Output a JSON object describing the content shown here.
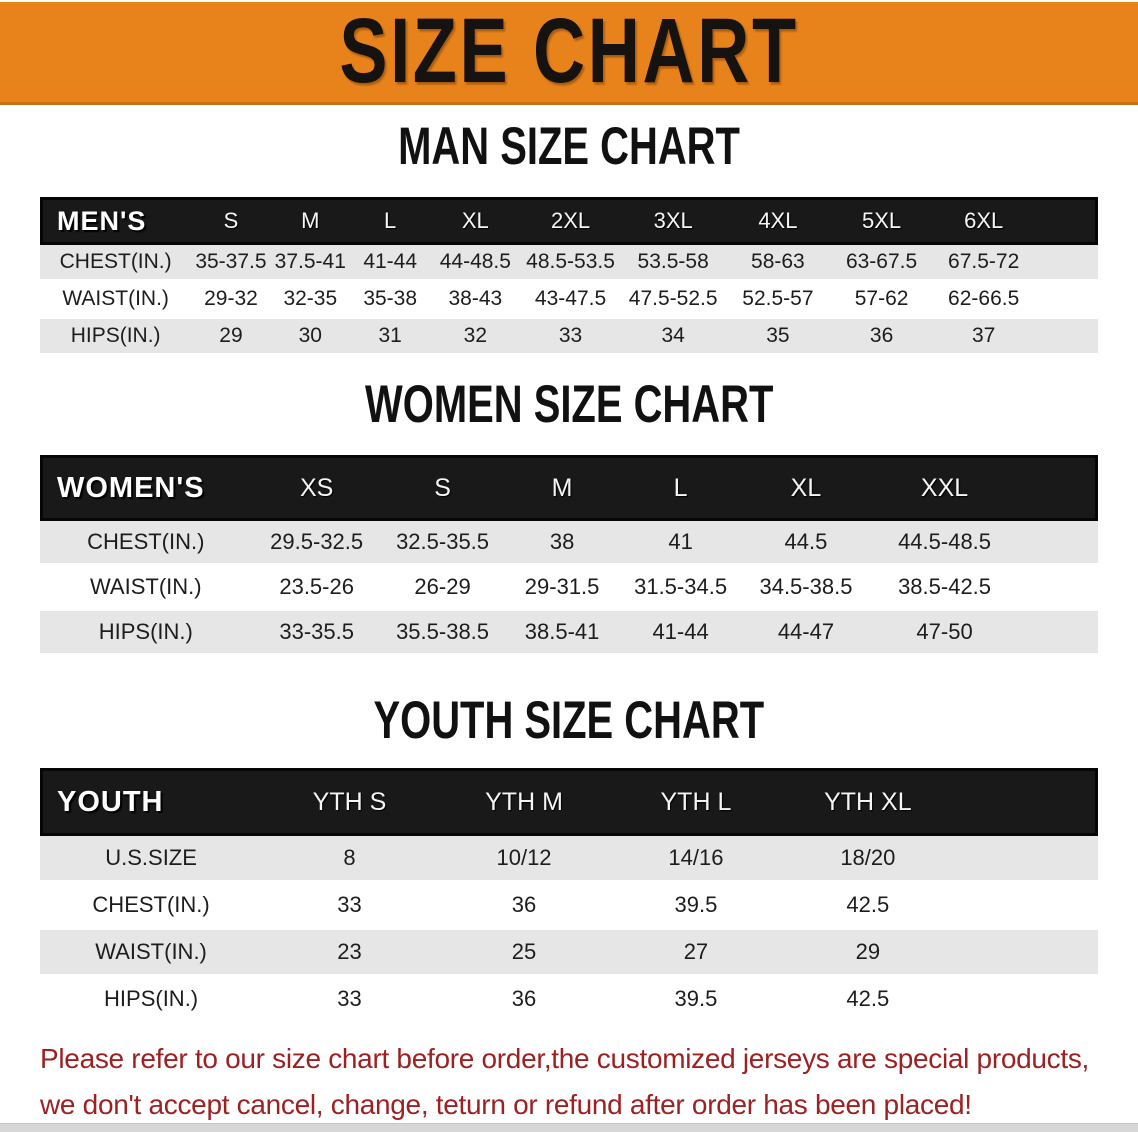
{
  "banner": {
    "title": "SIZE CHART"
  },
  "colors": {
    "banner_bg": "#E8831C",
    "header_bar_bg": "#191919",
    "row_alt_bg": "#E6E6E6",
    "disclaimer_text": "#9C2123"
  },
  "sections": [
    {
      "title": "MAN SIZE CHART",
      "table": {
        "corner_label": "MEN'S",
        "columns": [
          "S",
          "M",
          "L",
          "XL",
          "2XL",
          "3XL",
          "4XL",
          "5XL",
          "6XL"
        ],
        "rows": [
          {
            "label": "CHEST(IN.)",
            "values": [
              "35-37.5",
              "37.5-41",
              "41-44",
              "44-48.5",
              "48.5-53.5",
              "53.5-58",
              "58-63",
              "63-67.5",
              "67.5-72"
            ]
          },
          {
            "label": "WAIST(IN.)",
            "values": [
              "29-32",
              "32-35",
              "35-38",
              "38-43",
              "43-47.5",
              "47.5-52.5",
              "52.5-57",
              "57-62",
              "62-66.5"
            ]
          },
          {
            "label": "HIPS(IN.)",
            "values": [
              "29",
              "30",
              "31",
              "32",
              "33",
              "34",
              "35",
              "36",
              "37"
            ]
          }
        ]
      }
    },
    {
      "title": "WOMEN SIZE CHART",
      "table": {
        "corner_label": "WOMEN'S",
        "columns": [
          "XS",
          "S",
          "M",
          "L",
          "XL",
          "XXL"
        ],
        "rows": [
          {
            "label": "CHEST(IN.)",
            "values": [
              "29.5-32.5",
              "32.5-35.5",
              "38",
              "41",
              "44.5",
              "44.5-48.5"
            ]
          },
          {
            "label": "WAIST(IN.)",
            "values": [
              "23.5-26",
              "26-29",
              "29-31.5",
              "31.5-34.5",
              "34.5-38.5",
              "38.5-42.5"
            ]
          },
          {
            "label": "HIPS(IN.)",
            "values": [
              "33-35.5",
              "35.5-38.5",
              "38.5-41",
              "41-44",
              "44-47",
              "47-50"
            ]
          }
        ]
      }
    },
    {
      "title": "YOUTH SIZE CHART",
      "table": {
        "corner_label": "YOUTH",
        "columns": [
          "YTH S",
          "YTH M",
          "YTH L",
          "YTH XL"
        ],
        "rows": [
          {
            "label": "U.S.SIZE",
            "values": [
              "8",
              "10/12",
              "14/16",
              "18/20"
            ]
          },
          {
            "label": "CHEST(IN.)",
            "values": [
              "33",
              "36",
              "39.5",
              "42.5"
            ]
          },
          {
            "label": "WAIST(IN.)",
            "values": [
              "23",
              "25",
              "27",
              "29"
            ]
          },
          {
            "label": "HIPS(IN.)",
            "values": [
              "33",
              "36",
              "39.5",
              "42.5"
            ]
          }
        ]
      }
    }
  ],
  "disclaimer": {
    "line1": "Please refer to our size chart before order,the customized jerseys are special products,",
    "line2": "we don't accept cancel, change, teturn or refund after order has been placed!"
  }
}
